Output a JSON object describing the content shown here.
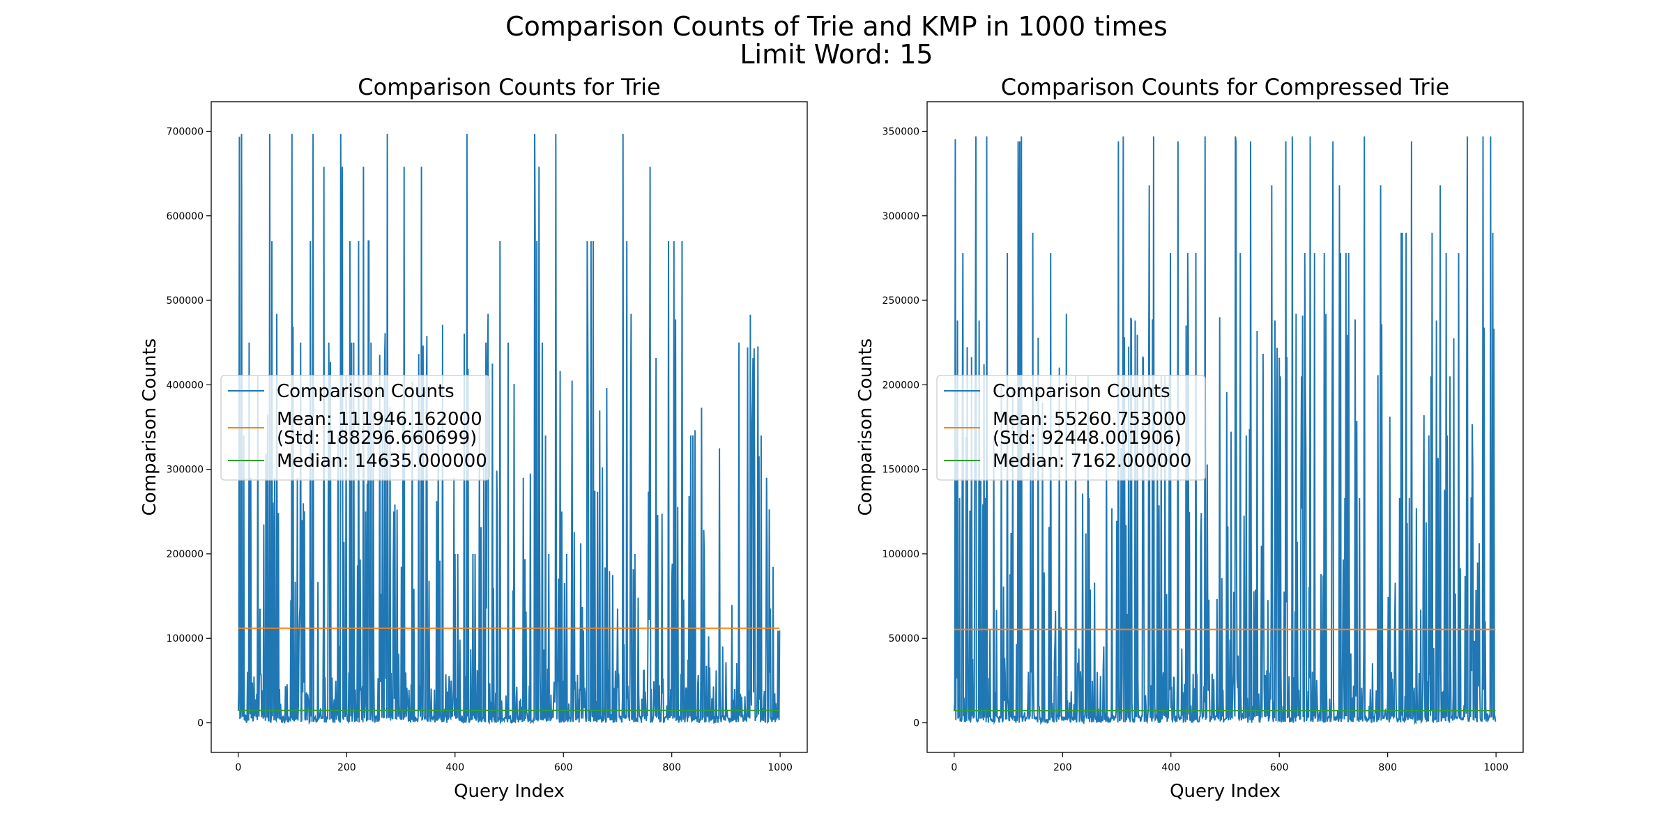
{
  "figure": {
    "suptitle_line1": "Comparison Counts of Trie and KMP in 1000 times",
    "suptitle_line2": "Limit Word: 15"
  },
  "colors": {
    "series": "#1f77b4",
    "mean": "#ff7f0e",
    "median": "#2ca02c"
  },
  "chart_data": [
    {
      "type": "line",
      "title": "Comparison Counts for Trie",
      "xlabel": "Query Index",
      "ylabel": "Comparison Counts",
      "xlim": [
        -50,
        1050
      ],
      "ylim": [
        -35000,
        735000
      ],
      "xticks": [
        0,
        200,
        400,
        600,
        800,
        1000
      ],
      "yticks": [
        0,
        100000,
        200000,
        300000,
        400000,
        500000,
        600000,
        700000
      ],
      "n_points": 1000,
      "legend_position": "center-left",
      "series": [
        {
          "name": "Comparison Counts",
          "description": "noisy per-query counts between ~0 and ~697000",
          "min": 0,
          "max": 697000,
          "peak_levels": [
            697000,
            658000,
            570000,
            484000,
            450000,
            340000,
            290000,
            250000,
            200000
          ]
        },
        {
          "name": "Mean: 111946.162000\n(Std: 188296.660699)",
          "value": 111946.162,
          "std": 188296.660699
        },
        {
          "name": "Median: 14635.000000",
          "value": 14635.0
        }
      ]
    },
    {
      "type": "line",
      "title": "Comparison Counts for Compressed Trie",
      "xlabel": "Query Index",
      "ylabel": "Comparison Counts",
      "xlim": [
        -50,
        1050
      ],
      "ylim": [
        -17500,
        367500
      ],
      "xticks": [
        0,
        200,
        400,
        600,
        800,
        1000
      ],
      "yticks": [
        0,
        50000,
        100000,
        150000,
        200000,
        250000,
        300000,
        350000
      ],
      "n_points": 1000,
      "legend_position": "center-left",
      "series": [
        {
          "name": "Comparison Counts",
          "description": "noisy per-query counts between ~0 and ~347000",
          "min": 0,
          "max": 347000,
          "peak_levels": [
            347000,
            344000,
            318000,
            290000,
            278000,
            238000,
            205000,
            170000,
            133000
          ]
        },
        {
          "name": "Mean: 55260.753000\n(Std: 92448.001906)",
          "value": 55260.753,
          "std": 92448.001906
        },
        {
          "name": "Median: 7162.000000",
          "value": 7162.0
        }
      ]
    }
  ]
}
